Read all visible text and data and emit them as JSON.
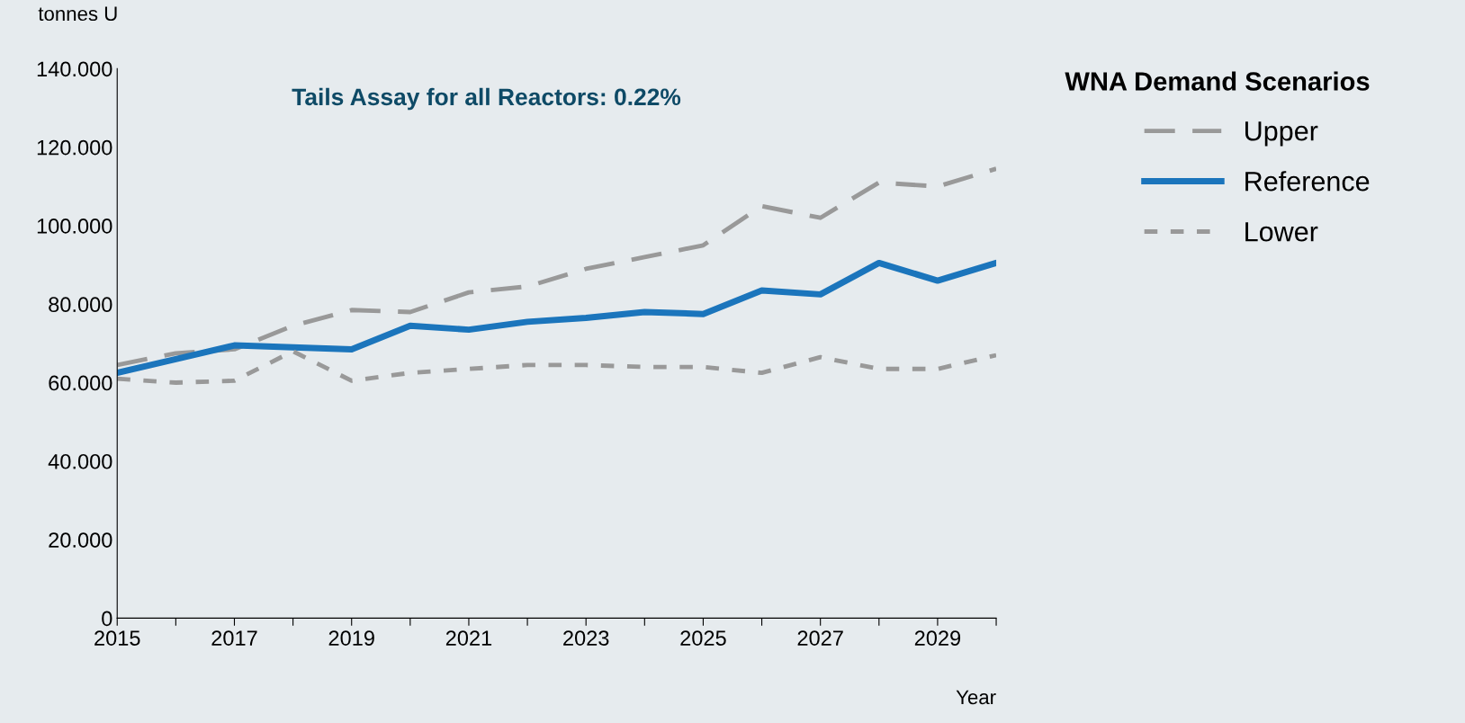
{
  "chart_data": {
    "type": "line",
    "title": "Tails Assay for all Reactors: 0.22%",
    "ylabel": "tonnes U",
    "xlabel": "Year",
    "legend_title": "WNA Demand Scenarios",
    "legend": "right",
    "grid": false,
    "marker": "none",
    "x": [
      2015,
      2016,
      2017,
      2018,
      2019,
      2020,
      2021,
      2022,
      2023,
      2024,
      2025,
      2026,
      2027,
      2028,
      2029,
      2030
    ],
    "xlim": [
      2015,
      2030
    ],
    "xticks": [
      {
        "value": 2015,
        "label": "2015"
      },
      {
        "value": 2016,
        "label": null
      },
      {
        "value": 2017,
        "label": "2017"
      },
      {
        "value": 2018,
        "label": null
      },
      {
        "value": 2019,
        "label": "2019"
      },
      {
        "value": 2020,
        "label": null
      },
      {
        "value": 2021,
        "label": "2021"
      },
      {
        "value": 2022,
        "label": null
      },
      {
        "value": 2023,
        "label": "2023"
      },
      {
        "value": 2024,
        "label": null
      },
      {
        "value": 2025,
        "label": "2025"
      },
      {
        "value": 2026,
        "label": null
      },
      {
        "value": 2027,
        "label": "2027"
      },
      {
        "value": 2028,
        "label": null
      },
      {
        "value": 2029,
        "label": "2029"
      },
      {
        "value": 2030,
        "label": null
      }
    ],
    "ylim": [
      0,
      140
    ],
    "yticks": [
      0,
      {
        "value": 20,
        "label": "20.000"
      },
      {
        "value": 40,
        "label": "40.000"
      },
      {
        "value": 60,
        "label": "60.000"
      },
      {
        "value": 80,
        "label": "80.000"
      },
      {
        "value": 100,
        "label": "100.000"
      },
      {
        "value": 120,
        "label": "120.000"
      },
      {
        "value": 140,
        "label": "140.000"
      }
    ],
    "series": [
      {
        "name": "Upper",
        "color": "#999999",
        "line_style": "dashed",
        "values": [
          64.5,
          67.5,
          68.5,
          74.5,
          78.5,
          78,
          83,
          84.5,
          89,
          92,
          95,
          105,
          102,
          111,
          110,
          114.5
        ]
      },
      {
        "name": "Reference",
        "color": "#1b75bc",
        "line_style": "solid",
        "values": [
          62.5,
          66,
          69.5,
          69,
          68.5,
          74.5,
          73.5,
          75.5,
          76.5,
          78,
          77.5,
          83.5,
          82.5,
          90.5,
          86,
          90.5
        ]
      },
      {
        "name": "Lower",
        "color": "#999999",
        "line_style": "dotted",
        "values": [
          61,
          60,
          60.5,
          68,
          60.5,
          62.5,
          63.5,
          64.5,
          64.5,
          64,
          64,
          62.5,
          66.5,
          63.5,
          63.5,
          67
        ]
      }
    ]
  }
}
